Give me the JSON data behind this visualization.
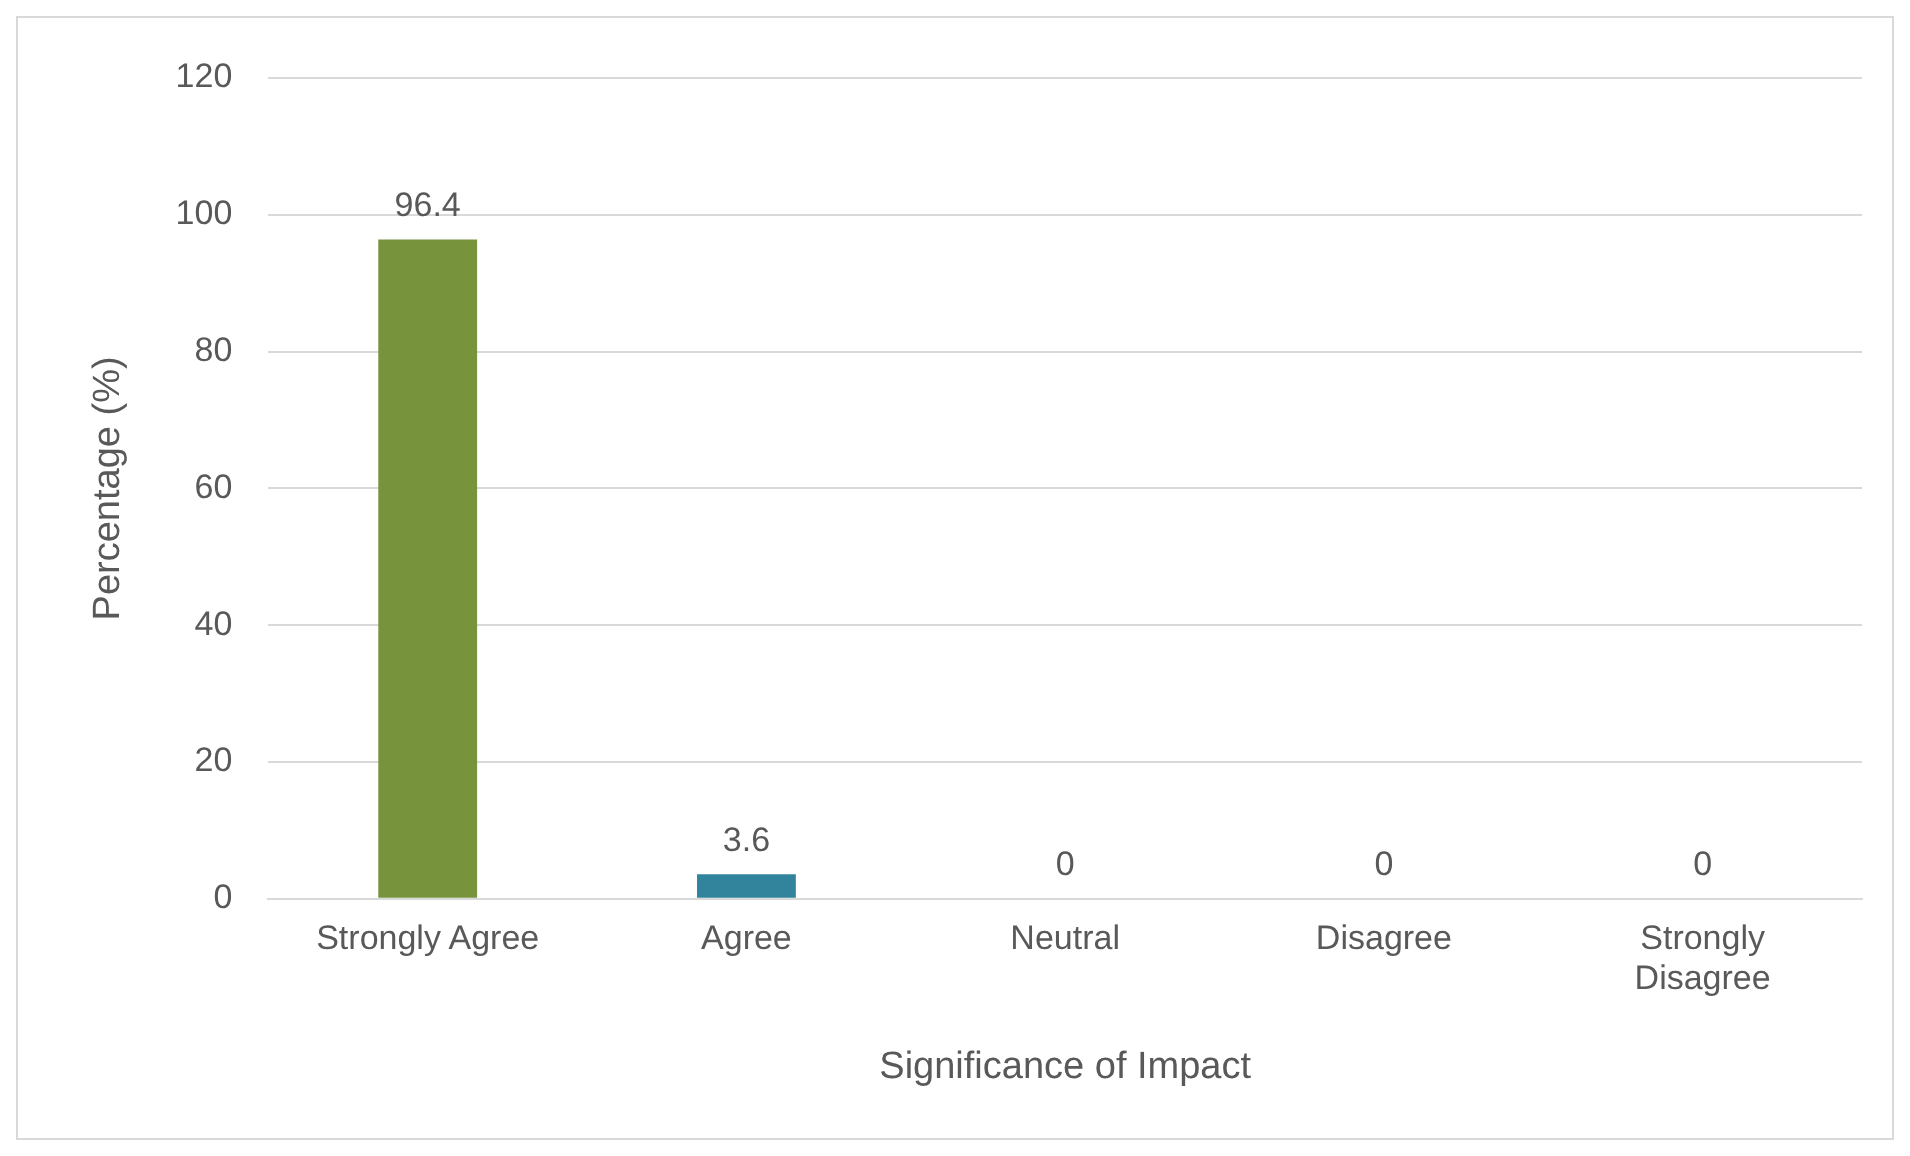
{
  "chart_data": {
    "type": "bar",
    "xlabel": "Significance of Impact",
    "ylabel": "Percentage (%)",
    "categories": [
      "Strongly Agree",
      "Agree",
      "Neutral",
      "Disagree",
      "Strongly Disagree"
    ],
    "values": [
      96.4,
      3.6,
      0,
      0,
      0
    ],
    "colors": [
      "#77933c",
      "#31849b",
      "#77933c",
      "#31849b",
      "#77933c"
    ],
    "ylim": [
      0,
      120
    ],
    "yticks": [
      0,
      20,
      40,
      60,
      80,
      100,
      120
    ],
    "grid": "y",
    "data_labels": true,
    "legend": false
  }
}
